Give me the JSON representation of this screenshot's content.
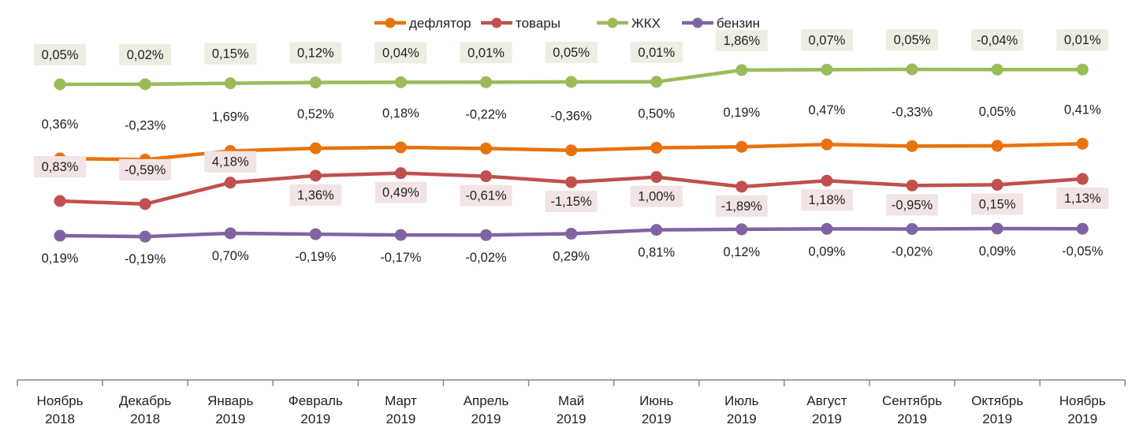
{
  "chart_data": {
    "type": "line",
    "title": "",
    "xlabel": "",
    "ylabel": "",
    "legend_position": "top",
    "grid": false,
    "categories": [
      [
        "Ноябрь",
        "2018"
      ],
      [
        "Декабрь",
        "2018"
      ],
      [
        "Январь",
        "2019"
      ],
      [
        "Февраль",
        "2019"
      ],
      [
        "Март",
        "2019"
      ],
      [
        "Апрель",
        "2019"
      ],
      [
        "Май",
        "2019"
      ],
      [
        "Июнь",
        "2019"
      ],
      [
        "Июль",
        "2019"
      ],
      [
        "Август",
        "2019"
      ],
      [
        "Сентябрь",
        "2019"
      ],
      [
        "Октябрь",
        "2019"
      ],
      [
        "Ноябрь",
        "2019"
      ]
    ],
    "series": [
      {
        "name": "дефлятор",
        "color": "#e8720c",
        "values": [
          0.36,
          -0.23,
          1.69,
          0.52,
          0.18,
          -0.22,
          -0.36,
          0.5,
          0.19,
          0.47,
          -0.33,
          0.05,
          0.41
        ],
        "labels": [
          "0,36%",
          "-0,23%",
          "1,69%",
          "0,52%",
          "0,18%",
          "-0,22%",
          "-0,36%",
          "0,50%",
          "0,19%",
          "0,47%",
          "-0,33%",
          "0,05%",
          "0,41%"
        ]
      },
      {
        "name": "товары",
        "color": "#c0504d",
        "label_bg": "#f2e4e4",
        "values": [
          0.83,
          -0.59,
          4.18,
          1.36,
          0.49,
          -0.61,
          -1.15,
          1.0,
          -1.89,
          1.18,
          -0.95,
          0.15,
          1.13
        ],
        "labels": [
          "0,83%",
          "-0,59%",
          "4,18%",
          "1,36%",
          "0,49%",
          "-0,61%",
          "-1,15%",
          "1,00%",
          "-1,89%",
          "1,18%",
          "-0,95%",
          "0,15%",
          "1,13%"
        ]
      },
      {
        "name": "ЖКХ",
        "color": "#9bbb59",
        "label_bg": "#ebefe2",
        "values": [
          0.05,
          0.02,
          0.15,
          0.12,
          0.04,
          0.01,
          0.05,
          0.01,
          1.86,
          0.07,
          0.05,
          -0.04,
          0.01
        ],
        "labels": [
          "0,05%",
          "0,02%",
          "0,15%",
          "0,12%",
          "0,04%",
          "0,01%",
          "0,05%",
          "0,01%",
          "1,86%",
          "0,07%",
          "0,05%",
          "-0,04%",
          "0,01%"
        ]
      },
      {
        "name": "бензин",
        "color": "#8064a2",
        "values": [
          0.19,
          -0.19,
          0.7,
          -0.19,
          -0.17,
          -0.02,
          0.29,
          0.81,
          0.12,
          0.09,
          -0.02,
          0.09,
          -0.05
        ],
        "labels": [
          "0,19%",
          "-0,19%",
          "0,70%",
          "-0,19%",
          "-0,17%",
          "-0,02%",
          "0,29%",
          "0,81%",
          "0,12%",
          "0,09%",
          "-0,02%",
          "0,09%",
          "-0,05%"
        ]
      }
    ]
  }
}
